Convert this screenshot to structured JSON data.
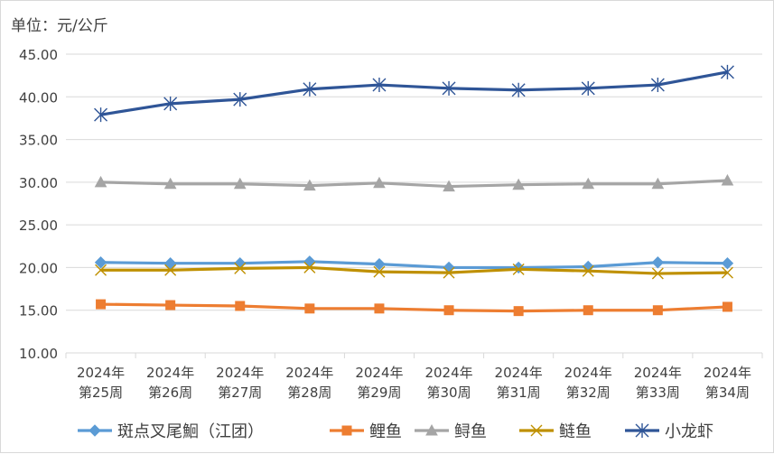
{
  "chart_data": {
    "type": "line",
    "unit_label": "单位：元/公斤",
    "categories": [
      [
        "2024年",
        "第25周"
      ],
      [
        "2024年",
        "第26周"
      ],
      [
        "2024年",
        "第27周"
      ],
      [
        "2024年",
        "第28周"
      ],
      [
        "2024年",
        "第29周"
      ],
      [
        "2024年",
        "第30周"
      ],
      [
        "2024年",
        "第31周"
      ],
      [
        "2024年",
        "第32周"
      ],
      [
        "2024年",
        "第33周"
      ],
      [
        "2024年",
        "第34周"
      ]
    ],
    "y_ticks": [
      "10.00",
      "15.00",
      "20.00",
      "25.00",
      "30.00",
      "35.00",
      "40.00",
      "45.00"
    ],
    "ylim": [
      10,
      45
    ],
    "grid": true,
    "legend_position": "bottom",
    "series": [
      {
        "name": "斑点叉尾鮰（江团）",
        "color": "#5B9BD5",
        "marker": "diamond",
        "values": [
          20.6,
          20.5,
          20.5,
          20.7,
          20.4,
          20.0,
          20.0,
          20.1,
          20.6,
          20.5
        ]
      },
      {
        "name": "鲤鱼",
        "color": "#ED7D31",
        "marker": "square",
        "values": [
          15.7,
          15.6,
          15.5,
          15.2,
          15.2,
          15.0,
          14.9,
          15.0,
          15.0,
          15.4
        ]
      },
      {
        "name": "鲟鱼",
        "color": "#A5A5A5",
        "marker": "triangle",
        "values": [
          30.0,
          29.8,
          29.8,
          29.6,
          29.9,
          29.5,
          29.7,
          29.8,
          29.8,
          30.2
        ]
      },
      {
        "name": "鲢鱼",
        "color": "#BF9000",
        "marker": "x",
        "values": [
          19.7,
          19.7,
          19.9,
          20.0,
          19.5,
          19.4,
          19.8,
          19.6,
          19.3,
          19.4
        ]
      },
      {
        "name": "小龙虾",
        "color": "#2F5597",
        "marker": "star",
        "values": [
          37.9,
          39.2,
          39.7,
          40.9,
          41.4,
          41.0,
          40.8,
          41.0,
          41.4,
          42.9
        ]
      }
    ]
  }
}
